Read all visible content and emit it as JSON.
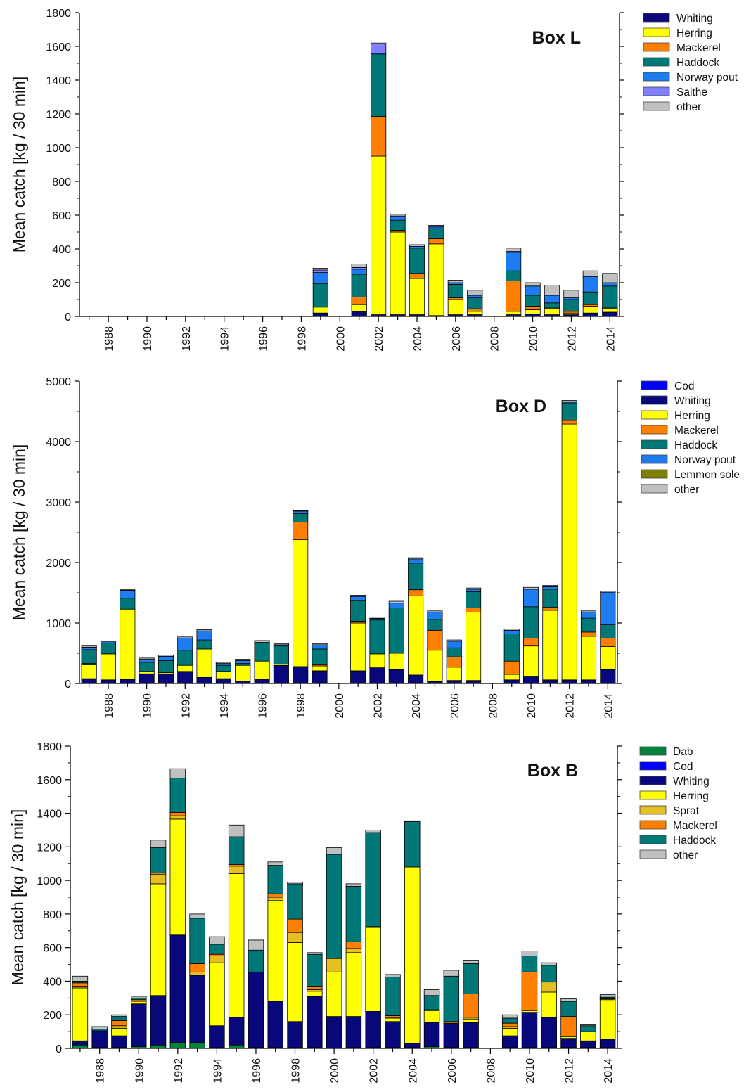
{
  "chart_data": [
    {
      "type": "bar",
      "stacked": true,
      "title": "Box L",
      "ylabel": "Mean catch [kg / 30 min]",
      "ylim": [
        0,
        1800
      ],
      "yticks": [
        0,
        200,
        400,
        600,
        800,
        1000,
        1200,
        1400,
        1600,
        1800
      ],
      "xtick_labels": [
        "1988",
        "1990",
        "1992",
        "1994",
        "1996",
        "1998",
        "2000",
        "2002",
        "2004",
        "2006",
        "2008",
        "2010",
        "2012",
        "2014"
      ],
      "years": [
        1987,
        1988,
        1989,
        1990,
        1991,
        1992,
        1993,
        1994,
        1995,
        1996,
        1997,
        1998,
        1999,
        2000,
        2001,
        2002,
        2003,
        2004,
        2005,
        2006,
        2007,
        2008,
        2009,
        2010,
        2011,
        2012,
        2013,
        2014
      ],
      "legend_position": "outside-right",
      "series": [
        {
          "name": "Whiting",
          "color": "#08087a",
          "values": [
            0,
            0,
            0,
            0,
            0,
            0,
            0,
            0,
            0,
            0,
            0,
            0,
            20,
            0,
            30,
            10,
            10,
            10,
            5,
            10,
            10,
            0,
            10,
            15,
            10,
            10,
            20,
            25
          ]
        },
        {
          "name": "Herring",
          "color": "#ffff00",
          "values": [
            0,
            0,
            0,
            0,
            0,
            0,
            0,
            0,
            0,
            0,
            0,
            0,
            35,
            0,
            40,
            940,
            490,
            215,
            425,
            90,
            20,
            0,
            20,
            25,
            35,
            10,
            40,
            20
          ]
        },
        {
          "name": "Mackerel",
          "color": "#ff8000",
          "values": [
            0,
            0,
            0,
            0,
            0,
            0,
            0,
            0,
            0,
            0,
            0,
            0,
            0,
            0,
            45,
            235,
            10,
            30,
            30,
            10,
            15,
            0,
            180,
            20,
            5,
            10,
            10,
            5
          ]
        },
        {
          "name": "Haddock",
          "color": "#007878",
          "values": [
            0,
            0,
            0,
            0,
            0,
            0,
            0,
            0,
            0,
            0,
            0,
            0,
            140,
            0,
            135,
            370,
            60,
            150,
            60,
            80,
            65,
            0,
            60,
            65,
            30,
            70,
            75,
            130
          ]
        },
        {
          "name": "Norway pout",
          "color": "#1e7cf0",
          "values": [
            0,
            0,
            0,
            0,
            0,
            0,
            0,
            0,
            0,
            0,
            0,
            0,
            65,
            0,
            30,
            5,
            25,
            10,
            10,
            10,
            15,
            0,
            110,
            55,
            45,
            10,
            90,
            20
          ]
        },
        {
          "name": "Saithe",
          "color": "#8080ff",
          "values": [
            0,
            0,
            0,
            0,
            0,
            0,
            0,
            0,
            0,
            0,
            0,
            0,
            15,
            0,
            10,
            55,
            0,
            0,
            5,
            0,
            0,
            0,
            5,
            0,
            0,
            0,
            5,
            0
          ]
        },
        {
          "name": "other",
          "color": "#c0c0c0",
          "values": [
            0,
            0,
            0,
            0,
            0,
            0,
            0,
            0,
            0,
            0,
            0,
            0,
            10,
            0,
            20,
            5,
            10,
            10,
            5,
            15,
            30,
            0,
            20,
            20,
            60,
            45,
            30,
            55
          ]
        }
      ]
    },
    {
      "type": "bar",
      "stacked": true,
      "title": "Box D",
      "ylabel": "Mean catch [kg / 30 min]",
      "ylim": [
        0,
        5000
      ],
      "yticks": [
        0,
        1000,
        2000,
        3000,
        4000,
        5000
      ],
      "xtick_labels": [
        "1988",
        "1990",
        "1992",
        "1994",
        "1996",
        "1998",
        "2000",
        "2002",
        "2004",
        "2006",
        "2008",
        "2010",
        "2012",
        "2014"
      ],
      "years": [
        1987,
        1988,
        1989,
        1990,
        1991,
        1992,
        1993,
        1994,
        1995,
        1996,
        1997,
        1998,
        1999,
        2000,
        2001,
        2002,
        2003,
        2004,
        2005,
        2006,
        2007,
        2008,
        2009,
        2010,
        2011,
        2012,
        2013,
        2014
      ],
      "legend_position": "outside-right",
      "series": [
        {
          "name": "Cod",
          "color": "#0000ff",
          "values": [
            0,
            0,
            0,
            0,
            0,
            0,
            0,
            0,
            0,
            0,
            0,
            0,
            0,
            0,
            0,
            0,
            0,
            0,
            0,
            0,
            0,
            0,
            0,
            0,
            0,
            0,
            0,
            0
          ]
        },
        {
          "name": "Whiting",
          "color": "#08087a",
          "values": [
            80,
            60,
            70,
            160,
            160,
            200,
            100,
            80,
            40,
            70,
            300,
            280,
            210,
            0,
            210,
            260,
            230,
            140,
            30,
            50,
            50,
            0,
            60,
            110,
            60,
            60,
            60,
            230
          ]
        },
        {
          "name": "Herring",
          "color": "#ffff00",
          "values": [
            230,
            430,
            1160,
            40,
            20,
            100,
            470,
            120,
            260,
            300,
            20,
            2100,
            80,
            0,
            790,
            230,
            270,
            1310,
            520,
            220,
            1130,
            0,
            90,
            510,
            1150,
            4230,
            720,
            380
          ]
        },
        {
          "name": "Mackerel",
          "color": "#ff8000",
          "values": [
            20,
            0,
            0,
            0,
            0,
            0,
            0,
            0,
            0,
            0,
            0,
            290,
            20,
            0,
            30,
            0,
            0,
            100,
            330,
            170,
            70,
            0,
            220,
            130,
            50,
            60,
            70,
            140
          ]
        },
        {
          "name": "Haddock",
          "color": "#007878",
          "values": [
            230,
            180,
            180,
            150,
            200,
            250,
            150,
            100,
            30,
            300,
            300,
            140,
            260,
            0,
            340,
            560,
            750,
            440,
            180,
            150,
            270,
            0,
            450,
            520,
            300,
            290,
            230,
            220
          ]
        },
        {
          "name": "Norway pout",
          "color": "#1e7cf0",
          "values": [
            40,
            20,
            130,
            50,
            70,
            200,
            150,
            30,
            50,
            10,
            20,
            40,
            70,
            0,
            70,
            20,
            80,
            70,
            120,
            110,
            40,
            0,
            60,
            290,
            40,
            20,
            100,
            540
          ]
        },
        {
          "name": "Lemmon sole",
          "color": "#7f7f00",
          "values": [
            0,
            0,
            0,
            0,
            0,
            0,
            0,
            0,
            0,
            0,
            0,
            0,
            0,
            0,
            0,
            0,
            0,
            0,
            0,
            0,
            0,
            0,
            0,
            0,
            0,
            0,
            0,
            0
          ]
        },
        {
          "name": "other",
          "color": "#c0c0c0",
          "values": [
            20,
            0,
            10,
            20,
            20,
            20,
            20,
            20,
            20,
            30,
            20,
            10,
            20,
            0,
            20,
            10,
            30,
            20,
            20,
            20,
            20,
            0,
            20,
            30,
            20,
            20,
            20,
            20
          ]
        }
      ]
    },
    {
      "type": "bar",
      "stacked": true,
      "title": "Box B",
      "ylabel": "Mean catch [kg / 30 min]",
      "ylim": [
        0,
        1800
      ],
      "yticks": [
        0,
        200,
        400,
        600,
        800,
        1000,
        1200,
        1400,
        1600,
        1800
      ],
      "xtick_labels": [
        "1988",
        "1990",
        "1992",
        "1994",
        "1996",
        "1998",
        "2000",
        "2002",
        "2004",
        "2006",
        "2008",
        "2010",
        "2012",
        "2014"
      ],
      "years": [
        1987,
        1988,
        1989,
        1990,
        1991,
        1992,
        1993,
        1994,
        1995,
        1996,
        1997,
        1998,
        1999,
        2000,
        2001,
        2002,
        2003,
        2004,
        2005,
        2006,
        2007,
        2008,
        2009,
        2010,
        2011,
        2012,
        2013,
        2014
      ],
      "legend_position": "outside-right",
      "series": [
        {
          "name": "Dab",
          "color": "#00843c",
          "values": [
            20,
            5,
            5,
            10,
            20,
            35,
            35,
            5,
            20,
            5,
            5,
            5,
            5,
            0,
            5,
            5,
            5,
            5,
            10,
            5,
            5,
            0,
            5,
            5,
            5,
            5,
            5,
            5
          ]
        },
        {
          "name": "Cod",
          "color": "#0000ff",
          "values": [
            0,
            0,
            0,
            0,
            0,
            0,
            0,
            0,
            0,
            0,
            0,
            0,
            0,
            0,
            0,
            0,
            0,
            0,
            0,
            0,
            0,
            0,
            0,
            0,
            0,
            0,
            0,
            0
          ]
        },
        {
          "name": "Whiting",
          "color": "#08087a",
          "values": [
            25,
            100,
            70,
            255,
            295,
            640,
            400,
            130,
            165,
            450,
            275,
            155,
            305,
            190,
            185,
            215,
            155,
            25,
            145,
            145,
            150,
            0,
            70,
            210,
            180,
            55,
            40,
            50
          ]
        },
        {
          "name": "Herring",
          "color": "#ffff00",
          "values": [
            315,
            0,
            45,
            15,
            665,
            690,
            0,
            375,
            855,
            0,
            600,
            470,
            30,
            265,
            380,
            500,
            20,
            1050,
            70,
            0,
            20,
            0,
            45,
            10,
            150,
            10,
            55,
            235
          ]
        },
        {
          "name": "Sprat",
          "color": "#e6c020",
          "values": [
            10,
            0,
            15,
            0,
            55,
            20,
            20,
            40,
            45,
            0,
            20,
            60,
            10,
            80,
            25,
            5,
            5,
            0,
            5,
            0,
            10,
            0,
            10,
            0,
            60,
            0,
            0,
            5
          ]
        },
        {
          "name": "Mackerel",
          "color": "#ff8000",
          "values": [
            20,
            0,
            30,
            10,
            10,
            20,
            50,
            10,
            10,
            0,
            20,
            80,
            20,
            0,
            40,
            0,
            10,
            0,
            0,
            10,
            140,
            0,
            20,
            230,
            0,
            120,
            0,
            0
          ]
        },
        {
          "name": "Haddock",
          "color": "#007878",
          "values": [
            10,
            10,
            25,
            10,
            150,
            205,
            270,
            60,
            165,
            130,
            170,
            210,
            190,
            620,
            330,
            560,
            230,
            270,
            85,
            270,
            180,
            0,
            30,
            95,
            100,
            90,
            35,
            10
          ]
        },
        {
          "name": "other",
          "color": "#c0c0c0",
          "values": [
            30,
            15,
            10,
            10,
            45,
            55,
            25,
            45,
            70,
            60,
            20,
            10,
            10,
            40,
            15,
            15,
            15,
            5,
            35,
            35,
            20,
            0,
            20,
            30,
            15,
            15,
            5,
            15
          ]
        }
      ]
    }
  ]
}
